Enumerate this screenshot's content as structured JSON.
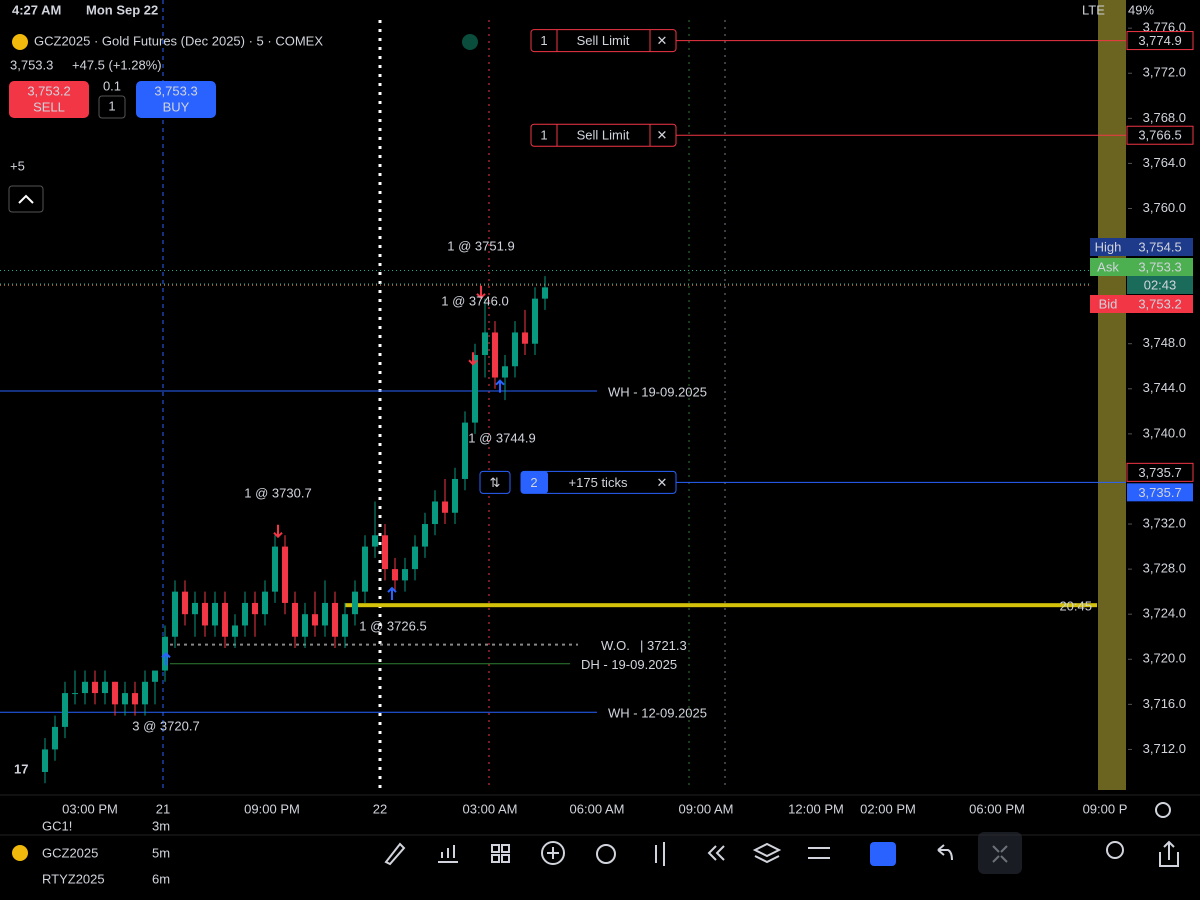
{
  "status": {
    "time": "4:27 AM",
    "date": "Mon Sep 22",
    "network": "LTE",
    "battery": "49%"
  },
  "header": {
    "symbol": "GCZ2025 · Gold Futures (Dec 2025) · 5 · COMEX",
    "price": "3,753.3",
    "change": "+47.5 (+1.28%)",
    "sell_price": "3,753.2",
    "sell_label": "SELL",
    "qty_step": "0.1",
    "qty": "1",
    "buy_price": "3,753.3",
    "buy_label": "BUY",
    "collapsed": "+5"
  },
  "chart": {
    "type": "candlestick",
    "ylim": [
      3708.4,
      3778.5
    ],
    "yticks": [
      {
        "value": 3776,
        "label": "3,776.0"
      },
      {
        "value": 3772,
        "label": "3,772.0"
      },
      {
        "value": 3768,
        "label": "3,768.0"
      },
      {
        "value": 3764,
        "label": "3,764.0"
      },
      {
        "value": 3760,
        "label": "3,760.0"
      },
      {
        "value": 3748,
        "label": "3,748.0"
      },
      {
        "value": 3744,
        "label": "3,744.0"
      },
      {
        "value": 3740,
        "label": "3,740.0"
      },
      {
        "value": 3732,
        "label": "3,732.0"
      },
      {
        "value": 3728,
        "label": "3,728.0"
      },
      {
        "value": 3724,
        "label": "3,724.0"
      },
      {
        "value": 3720,
        "label": "3,720.0"
      },
      {
        "value": 3716,
        "label": "3,716.0"
      },
      {
        "value": 3712,
        "label": "3,712.0"
      }
    ],
    "xticks": [
      "03:00 PM",
      "21",
      "09:00 PM",
      "22",
      "03:00 AM",
      "06:00 AM",
      "09:00 AM",
      "12:00 PM",
      "02:00 PM",
      "06:00 PM",
      "09:00 P"
    ],
    "up_color": "#089981",
    "down_color": "#f23645",
    "candles": [
      [
        3710,
        3713,
        3709,
        3712
      ],
      [
        3712,
        3715,
        3711,
        3714
      ],
      [
        3714,
        3718,
        3713,
        3717
      ],
      [
        3717,
        3719,
        3716,
        3717
      ],
      [
        3717,
        3719,
        3716,
        3718
      ],
      [
        3718,
        3719,
        3716,
        3717
      ],
      [
        3717,
        3719,
        3716,
        3718
      ],
      [
        3718,
        3718,
        3715,
        3716
      ],
      [
        3716,
        3718,
        3715,
        3717
      ],
      [
        3717,
        3718,
        3715,
        3716
      ],
      [
        3716,
        3719,
        3715,
        3718
      ],
      [
        3718,
        3719,
        3716,
        3719
      ],
      [
        3719,
        3723,
        3718,
        3722
      ],
      [
        3722,
        3727,
        3721,
        3726
      ],
      [
        3726,
        3727,
        3723,
        3724
      ],
      [
        3724,
        3726,
        3722,
        3725
      ],
      [
        3725,
        3726,
        3722,
        3723
      ],
      [
        3723,
        3726,
        3722,
        3725
      ],
      [
        3725,
        3726,
        3721,
        3722
      ],
      [
        3722,
        3724,
        3721,
        3723
      ],
      [
        3723,
        3726,
        3722,
        3725
      ],
      [
        3725,
        3726,
        3722,
        3724
      ],
      [
        3724,
        3727,
        3723,
        3726
      ],
      [
        3726,
        3731,
        3725,
        3730
      ],
      [
        3730,
        3731,
        3724,
        3725
      ],
      [
        3725,
        3726,
        3721,
        3722
      ],
      [
        3722,
        3725,
        3721,
        3724
      ],
      [
        3724,
        3726,
        3722,
        3723
      ],
      [
        3723,
        3727,
        3722,
        3725
      ],
      [
        3725,
        3726,
        3721,
        3722
      ],
      [
        3722,
        3725,
        3721,
        3724
      ],
      [
        3724,
        3727,
        3723,
        3726
      ],
      [
        3726,
        3731,
        3725,
        3730
      ],
      [
        3730,
        3734,
        3729,
        3731
      ],
      [
        3731,
        3732,
        3727,
        3728
      ],
      [
        3728,
        3729,
        3726,
        3727
      ],
      [
        3727,
        3729,
        3726,
        3728
      ],
      [
        3728,
        3731,
        3727,
        3730
      ],
      [
        3730,
        3733,
        3729,
        3732
      ],
      [
        3732,
        3735,
        3731,
        3734
      ],
      [
        3734,
        3736,
        3732,
        3733
      ],
      [
        3733,
        3737,
        3732,
        3736
      ],
      [
        3736,
        3742,
        3735,
        3741
      ],
      [
        3741,
        3748,
        3740,
        3747
      ],
      [
        3747,
        3752,
        3745,
        3749
      ],
      [
        3749,
        3750,
        3744,
        3745
      ],
      [
        3745,
        3747,
        3743,
        3746
      ],
      [
        3746,
        3750,
        3745,
        3749
      ],
      [
        3749,
        3751,
        3747,
        3748
      ],
      [
        3748,
        3753,
        3747,
        3752
      ],
      [
        3752,
        3754,
        3751,
        3753
      ]
    ],
    "price_tags": [
      {
        "label": "High",
        "value": 3754.5,
        "text": "3,754.5"
      },
      {
        "label": "Ask",
        "value": 3753.3,
        "text": "3,753.3",
        "countdown": "02:43"
      },
      {
        "label": "Bid",
        "value": 3753.2,
        "text": "3,753.2"
      }
    ],
    "orders": [
      {
        "qty": "1",
        "type": "Sell Limit",
        "value": 3774.9,
        "text": "3,774.9"
      },
      {
        "qty": "1",
        "type": "Sell Limit",
        "value": 3766.5,
        "text": "3,766.5"
      }
    ],
    "position": {
      "qty": "2",
      "pnl": "+175 ticks",
      "value": 3735.7,
      "text": "3,735.7",
      "text2": "3,735.7"
    },
    "fills": [
      {
        "text": "1 @ 3751.9",
        "value": 3751.9,
        "side": "sell"
      },
      {
        "text": "1 @ 3746.0",
        "value": 3746.0,
        "side": "sell"
      },
      {
        "text": "1 @ 3744.9",
        "value": 3744.9,
        "side": "buy"
      },
      {
        "text": "1 @ 3730.7",
        "value": 3730.7,
        "side": "sell"
      },
      {
        "text": "1 @ 3726.5",
        "value": 3726.5,
        "side": "buy"
      },
      {
        "text": "3 @ 3720.7",
        "value": 3720.7,
        "side": "buy"
      }
    ],
    "levels": [
      {
        "label": "WH - 19-09.2025",
        "value": 3743.8,
        "color": "#2962ff"
      },
      {
        "label": "WH - 12-09.2025",
        "value": 3715.3,
        "color": "#2962ff"
      },
      {
        "label": "DH - 19-09.2025",
        "value": 3719.6,
        "color": "#2e7d32"
      }
    ],
    "open_level": {
      "label": "W.O.",
      "text": "| 3721.3",
      "value": 3721.3
    },
    "session_level": {
      "label": "20:45",
      "value": 3724.8
    }
  },
  "toolbar": {
    "symbol": "GCZ2025",
    "interval": "5m",
    "ghost1": "GC1!",
    "ghost1b": "3m",
    "ghost2": "RTYZ2025",
    "ghost2b": "6m"
  }
}
